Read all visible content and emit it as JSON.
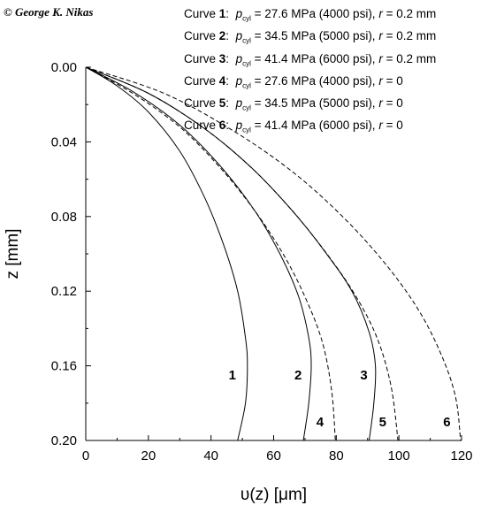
{
  "copyright": "© George K. Nikas",
  "legend": [
    {
      "curve_label": "Curve",
      "num": "1",
      "p_sym": "p",
      "p_sub": "cyl",
      "p_text": " = 27.6 MPa (4000 psi), ",
      "r_sym": "r",
      "r_text": " = 0.2 mm"
    },
    {
      "curve_label": "Curve",
      "num": "2",
      "p_sym": "p",
      "p_sub": "cyl",
      "p_text": " = 34.5 MPa (5000 psi), ",
      "r_sym": "r",
      "r_text": " = 0.2 mm"
    },
    {
      "curve_label": "Curve",
      "num": "3",
      "p_sym": "p",
      "p_sub": "cyl",
      "p_text": " = 41.4 MPa (6000 psi), ",
      "r_sym": "r",
      "r_text": " = 0.2 mm"
    },
    {
      "curve_label": "Curve",
      "num": "4",
      "p_sym": "p",
      "p_sub": "cyl",
      "p_text": " = 27.6 MPa (4000 psi), ",
      "r_sym": "r",
      "r_text": " = 0"
    },
    {
      "curve_label": "Curve",
      "num": "5",
      "p_sym": "p",
      "p_sub": "cyl",
      "p_text": " = 34.5 MPa (5000 psi), ",
      "r_sym": "r",
      "r_text": " = 0"
    },
    {
      "curve_label": "Curve",
      "num": "6",
      "p_sym": "p",
      "p_sub": "cyl",
      "p_text": " = 41.4 MPa (6000 psi), ",
      "r_sym": "r",
      "r_text": " = 0"
    }
  ],
  "chart_data": {
    "type": "line",
    "xlabel": "υ(z) [μm]",
    "ylabel": "z [mm]",
    "xlim": [
      0,
      120
    ],
    "ylim": [
      0.2,
      0.0
    ],
    "y_inverted": true,
    "x_ticks": [
      "0",
      "20",
      "40",
      "60",
      "80",
      "100",
      "120"
    ],
    "y_ticks": [
      "0.00",
      "0.04",
      "0.08",
      "0.12",
      "0.16",
      "0.20"
    ],
    "grid": false,
    "series": [
      {
        "name": "1",
        "style": "solid",
        "x": [
          0,
          10,
          20,
          30,
          38,
          44,
          48.5,
          51,
          51.6,
          51,
          48.5
        ],
        "y": [
          0,
          0.01,
          0.024,
          0.045,
          0.07,
          0.095,
          0.12,
          0.145,
          0.16,
          0.18,
          0.2
        ]
      },
      {
        "name": "2",
        "style": "solid",
        "x": [
          0,
          15,
          30,
          43,
          54,
          62,
          68,
          71.2,
          72,
          71.2,
          69.5
        ],
        "y": [
          0,
          0.013,
          0.031,
          0.053,
          0.077,
          0.1,
          0.123,
          0.145,
          0.16,
          0.18,
          0.2
        ]
      },
      {
        "name": "3",
        "style": "solid",
        "x": [
          0,
          20,
          38,
          53,
          66,
          76,
          85,
          90.5,
          92.5,
          92,
          90.5
        ],
        "y": [
          0,
          0.014,
          0.033,
          0.054,
          0.077,
          0.098,
          0.12,
          0.142,
          0.16,
          0.18,
          0.2
        ]
      },
      {
        "name": "4",
        "style": "dashed",
        "x": [
          0,
          15,
          30,
          43,
          54,
          63,
          70,
          75.5,
          78.5,
          79.7
        ],
        "y": [
          0,
          0.014,
          0.032,
          0.054,
          0.077,
          0.1,
          0.123,
          0.147,
          0.173,
          0.2
        ]
      },
      {
        "name": "5",
        "style": "dashed",
        "x": [
          0,
          20,
          38,
          53,
          66,
          77,
          86,
          93,
          97.5,
          99.7
        ],
        "y": [
          0,
          0.014,
          0.033,
          0.054,
          0.077,
          0.1,
          0.122,
          0.145,
          0.171,
          0.2
        ]
      },
      {
        "name": "6",
        "style": "dashed",
        "x": [
          0,
          25,
          47,
          66,
          82,
          95,
          105.5,
          113,
          118,
          119.7
        ],
        "y": [
          0,
          0.014,
          0.034,
          0.056,
          0.08,
          0.104,
          0.128,
          0.152,
          0.176,
          0.2
        ]
      }
    ],
    "curve_labels": [
      {
        "text": "1",
        "x": 48.5,
        "y": 0.165
      },
      {
        "text": "2",
        "x": 69.5,
        "y": 0.165
      },
      {
        "text": "3",
        "x": 90.5,
        "y": 0.165
      },
      {
        "text": "4",
        "x": 76.5,
        "y": 0.19
      },
      {
        "text": "5",
        "x": 96.5,
        "y": 0.19
      },
      {
        "text": "6",
        "x": 117,
        "y": 0.19
      }
    ]
  }
}
